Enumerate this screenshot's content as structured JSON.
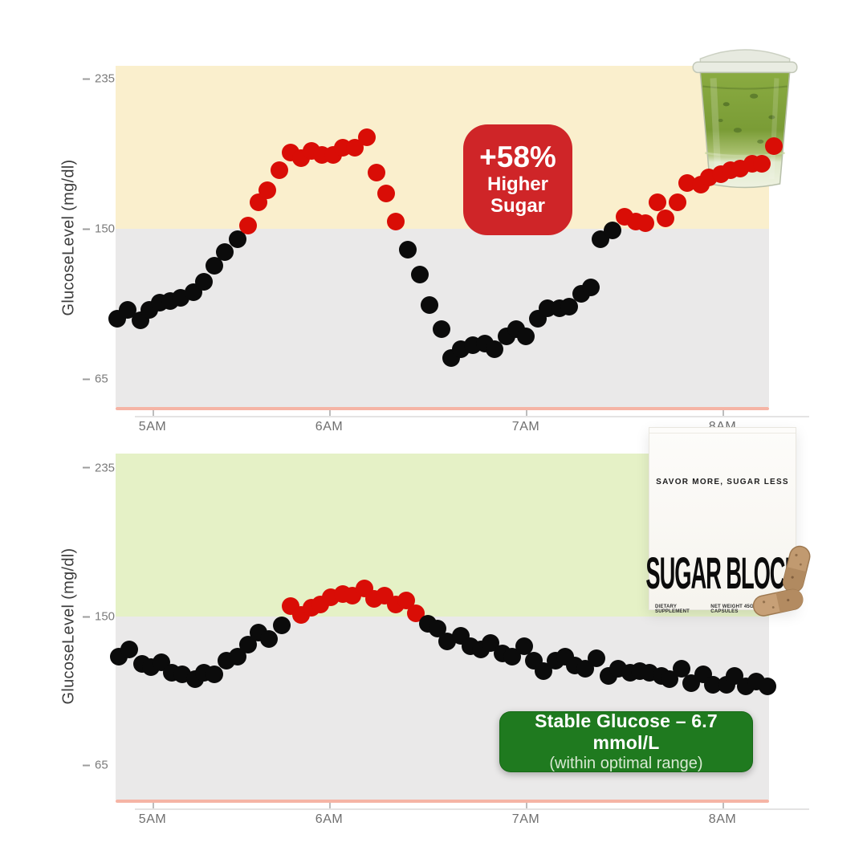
{
  "chart_data": [
    {
      "type": "scatter",
      "title": "",
      "ylabel": "GlucoseLevel (mg/dl)",
      "xlabel": "",
      "y_ticks": [
        235,
        150,
        65
      ],
      "x_tick_labels": [
        "5AM",
        "6AM",
        "7AM",
        "8AM"
      ],
      "x_tick_hours": [
        5,
        6,
        7,
        8
      ],
      "xlim": [
        4.75,
        8.3
      ],
      "ylim": [
        48,
        242
      ],
      "grid": false,
      "threshold": 150,
      "band_above_color": "#FAEFCD",
      "band_below_color": "#EAE9E9",
      "baseline_color": "#F5B4A5",
      "dot_color_above": "#D90D06",
      "dot_color_below": "#0B0B0B",
      "annotation": {
        "value": "+58%",
        "line2": "Higher",
        "line3": "Sugar",
        "bg_color": "#CF2528",
        "text_color": "#FFFFFF"
      },
      "points": [
        [
          4.8,
          99
        ],
        [
          4.86,
          104
        ],
        [
          4.93,
          98
        ],
        [
          4.98,
          104
        ],
        [
          5.04,
          108
        ],
        [
          5.1,
          109
        ],
        [
          5.16,
          111
        ],
        [
          5.23,
          114
        ],
        [
          5.29,
          120
        ],
        [
          5.35,
          129
        ],
        [
          5.41,
          137
        ],
        [
          5.48,
          144
        ],
        [
          5.54,
          152
        ],
        [
          5.6,
          165
        ],
        [
          5.65,
          172
        ],
        [
          5.72,
          183
        ],
        [
          5.78,
          193
        ],
        [
          5.84,
          190
        ],
        [
          5.9,
          194
        ],
        [
          5.96,
          192
        ],
        [
          6.02,
          192
        ],
        [
          6.07,
          196
        ],
        [
          6.13,
          196
        ],
        [
          6.19,
          202
        ],
        [
          6.24,
          182
        ],
        [
          6.29,
          170
        ],
        [
          6.34,
          154
        ],
        [
          6.4,
          138
        ],
        [
          6.46,
          124
        ],
        [
          6.51,
          107
        ],
        [
          6.57,
          93
        ],
        [
          6.62,
          77
        ],
        [
          6.67,
          82
        ],
        [
          6.73,
          84
        ],
        [
          6.79,
          85
        ],
        [
          6.84,
          82
        ],
        [
          6.9,
          89
        ],
        [
          6.95,
          93
        ],
        [
          7.0,
          89
        ],
        [
          7.06,
          99
        ],
        [
          7.11,
          105
        ],
        [
          7.17,
          105
        ],
        [
          7.22,
          106
        ],
        [
          7.28,
          113
        ],
        [
          7.33,
          117
        ],
        [
          7.38,
          144
        ],
        [
          7.44,
          149
        ],
        [
          7.5,
          157
        ],
        [
          7.56,
          154
        ],
        [
          7.61,
          153
        ],
        [
          7.67,
          165
        ],
        [
          7.71,
          156
        ],
        [
          7.77,
          165
        ],
        [
          7.82,
          176
        ],
        [
          7.89,
          175
        ],
        [
          7.93,
          179
        ],
        [
          7.99,
          181
        ],
        [
          8.04,
          183
        ],
        [
          8.09,
          184
        ],
        [
          8.15,
          187
        ],
        [
          8.2,
          187
        ],
        [
          8.26,
          197
        ]
      ]
    },
    {
      "type": "scatter",
      "title": "",
      "ylabel": "GlucoseLevel (mg/dl)",
      "xlabel": "",
      "y_ticks": [
        235,
        150,
        65
      ],
      "x_tick_labels": [
        "5AM",
        "6AM",
        "7AM",
        "8AM"
      ],
      "x_tick_hours": [
        5,
        6,
        7,
        8
      ],
      "xlim": [
        4.75,
        8.3
      ],
      "ylim": [
        48,
        242
      ],
      "grid": false,
      "threshold": 150,
      "band_above_color": "#E5F1C6",
      "band_below_color": "#EAE9E9",
      "baseline_color": "#F5B4A5",
      "dot_color_above": "#D90D06",
      "dot_color_below": "#0B0B0B",
      "annotation": {
        "line1": "Stable Glucose – 6.7 mmol/L",
        "line2": "(within optimal range)",
        "bg_color": "#1F7A1F",
        "text_color": "#FFFFFF"
      },
      "points": [
        [
          4.81,
          127
        ],
        [
          4.87,
          131
        ],
        [
          4.94,
          123
        ],
        [
          4.99,
          121
        ],
        [
          5.05,
          124
        ],
        [
          5.11,
          118
        ],
        [
          5.17,
          117
        ],
        [
          5.24,
          114
        ],
        [
          5.29,
          118
        ],
        [
          5.35,
          117
        ],
        [
          5.42,
          125
        ],
        [
          5.48,
          127
        ],
        [
          5.54,
          134
        ],
        [
          5.6,
          141
        ],
        [
          5.66,
          137
        ],
        [
          5.73,
          145
        ],
        [
          5.78,
          156
        ],
        [
          5.84,
          151
        ],
        [
          5.9,
          155
        ],
        [
          5.95,
          157
        ],
        [
          6.01,
          161
        ],
        [
          6.07,
          163
        ],
        [
          6.12,
          162
        ],
        [
          6.18,
          166
        ],
        [
          6.23,
          160
        ],
        [
          6.28,
          162
        ],
        [
          6.34,
          157
        ],
        [
          6.39,
          159
        ],
        [
          6.44,
          152
        ],
        [
          6.5,
          146
        ],
        [
          6.55,
          143
        ],
        [
          6.6,
          136
        ],
        [
          6.67,
          139
        ],
        [
          6.72,
          133
        ],
        [
          6.77,
          131
        ],
        [
          6.82,
          135
        ],
        [
          6.88,
          129
        ],
        [
          6.93,
          127
        ],
        [
          6.99,
          133
        ],
        [
          7.04,
          125
        ],
        [
          7.09,
          119
        ],
        [
          7.15,
          125
        ],
        [
          7.2,
          127
        ],
        [
          7.25,
          122
        ],
        [
          7.3,
          120
        ],
        [
          7.36,
          126
        ],
        [
          7.42,
          116
        ],
        [
          7.47,
          120
        ],
        [
          7.53,
          118
        ],
        [
          7.58,
          119
        ],
        [
          7.63,
          118
        ],
        [
          7.69,
          116
        ],
        [
          7.73,
          114
        ],
        [
          7.79,
          120
        ],
        [
          7.84,
          112
        ],
        [
          7.9,
          117
        ],
        [
          7.95,
          111
        ],
        [
          8.02,
          111
        ],
        [
          8.06,
          116
        ],
        [
          8.12,
          110
        ],
        [
          8.17,
          113
        ],
        [
          8.23,
          110
        ]
      ]
    }
  ],
  "product_box": {
    "tagline": "SAVOR MORE, SUGAR LESS",
    "brand": "SUGAR BLOCK",
    "meta_left": "DIETARY SUPPLEMENT",
    "meta_right": "NET WEIGHT 45G | 90 CAPSULES"
  },
  "overlays": {
    "matcha_drink": "iced matcha latte in plastic cup",
    "capsules": "two brown supplement capsules"
  }
}
